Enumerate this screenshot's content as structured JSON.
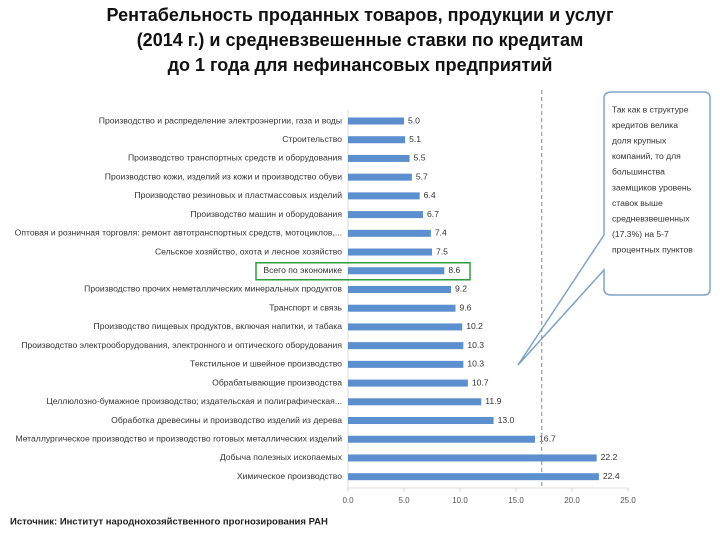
{
  "chart_data": {
    "type": "barh",
    "title": [
      "Рентабельность проданных товаров, продукции и услуг",
      "(2014 г.) и средневзвешенные ставки по кредитам",
      "до 1 года для нефинансовых предприятий"
    ],
    "categories": [
      "Производство и распределение электроэнергии, газа и воды",
      "Строительство",
      "Производство транспортных средств и оборудования",
      "Производство кожи, изделий из кожи и производство обуви",
      "Производство резиновых и пластмассовых изделий",
      "Производство машин и оборудования",
      "Оптовая и розничная торговля: ремонт автотранспортных средств, мотоциклов,...",
      "Сельское хозяйство, охота и лесное хозяйство",
      "Всего по экономике",
      "Производство прочих неметаллических минеральных продуктов",
      "Транспорт и связь",
      "Производство пищевых продуктов, включая напитки, и табака",
      "Производство электрооборудования, электронного и оптического оборудования",
      "Текстильное и швейное производство",
      "Обрабатывающие производства",
      "Целлюлозно-бумажное производство; издательская и полиграфическая...",
      "Обработка древесины и производство изделий из дерева",
      "Металлургическое производство и производство готовых металлических изделий",
      "Добыча полезных ископаемых",
      "Химическое производство"
    ],
    "values": [
      5.0,
      5.1,
      5.5,
      5.7,
      6.4,
      6.7,
      7.4,
      7.5,
      8.6,
      9.2,
      9.6,
      10.2,
      10.3,
      10.3,
      10.7,
      11.9,
      13.0,
      16.7,
      22.2,
      22.4
    ],
    "value_labels": [
      "5.0",
      "5.1",
      "5.5",
      "5.7",
      "6.4",
      "6.7",
      "7.4",
      "7.5",
      "8.6",
      "9.2",
      "9.6",
      "10.2",
      "10.3",
      "10.3",
      "10.7",
      "11.9",
      "13.0",
      "16.7",
      "22.2",
      "22.4"
    ],
    "color": "#5b8fce",
    "xlim": [
      0,
      25
    ],
    "xticks": [
      {
        "value": 0,
        "label": "0.0"
      },
      {
        "value": 5,
        "label": "5.0"
      },
      {
        "value": 10,
        "label": "10.0"
      },
      {
        "value": 15,
        "label": "15.0"
      },
      {
        "value": 20,
        "label": "20.0"
      },
      {
        "value": 25,
        "label": "25.0"
      }
    ],
    "grid": false,
    "reference_line": 17.3,
    "highlight_category": 8,
    "annotation": [
      "Так как в структуре",
      "кредитов велика",
      "доля крупных",
      "компаний, то для",
      "большинства",
      "заемщиков уровень",
      "ставок выше",
      "средневзвешенных",
      "(17.3%) на 5-7",
      "процентных пунктов"
    ],
    "source": "Источник: Институт народнохозяйственного прогнозирования РАН"
  }
}
